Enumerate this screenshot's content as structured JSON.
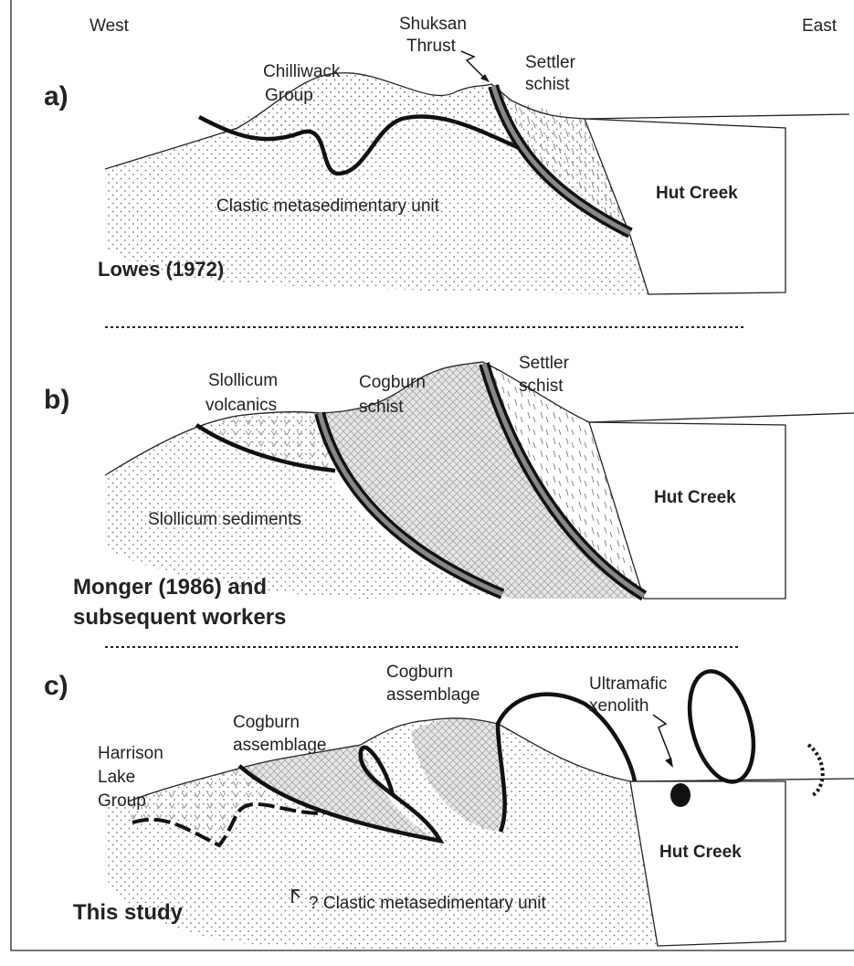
{
  "compass": {
    "west": "West",
    "east": "East"
  },
  "panel_a": {
    "label": "a)",
    "thrust": [
      "Shuksan",
      "Thrust"
    ],
    "upper_unit": [
      "Chilliwack",
      "Group"
    ],
    "schist": [
      "Settler",
      "schist"
    ],
    "lower_unit": "Clastic metasedimentary unit",
    "block": "Hut Creek",
    "source": "Lowes (1972)"
  },
  "panel_b": {
    "label": "b)",
    "volcanics": [
      "Slollicum",
      "volcanics"
    ],
    "schist_west": [
      "Cogburn",
      "schist"
    ],
    "schist_east": [
      "Settler",
      "schist"
    ],
    "lower_unit": "Slollicum sediments",
    "block": "Hut Creek",
    "source": [
      "Monger (1986) and",
      "subsequent workers"
    ]
  },
  "panel_c": {
    "label": "c)",
    "assemblage_west": [
      "Cogburn",
      "assemblage"
    ],
    "assemblage_east": [
      "Cogburn",
      "assemblage"
    ],
    "xenolith": [
      "Ultramafic",
      "xenolith"
    ],
    "group": [
      "Harrison",
      "Lake",
      "Group"
    ],
    "block": "Hut Creek",
    "lower_unit": "? Clastic metasedimentary unit",
    "source": "This study"
  }
}
